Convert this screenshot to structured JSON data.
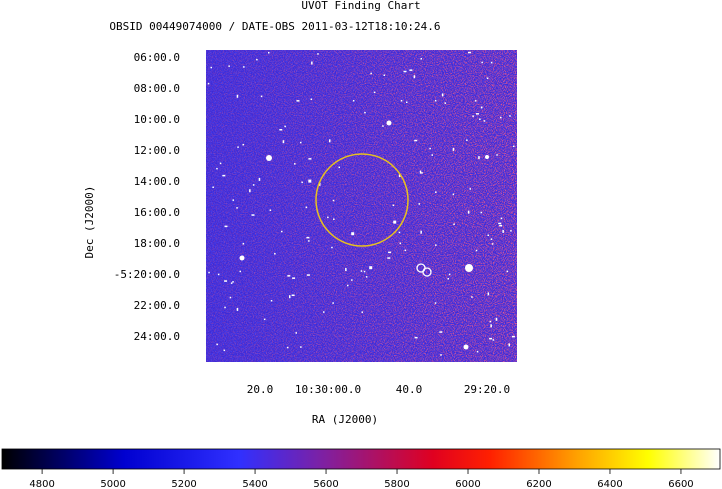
{
  "header": {
    "title": "UVOT Finding Chart",
    "subtitle": "OBSID 00449074000 / DATE-OBS 2011-03-12T18:10:24.6"
  },
  "axes": {
    "y": {
      "label": "Dec (J2000)",
      "ticks": [
        "06:00.0",
        "08:00.0",
        "10:00.0",
        "12:00.0",
        "14:00.0",
        "16:00.0",
        "18:00.0",
        "-5:20:00.0",
        "22:00.0",
        "24:00.0"
      ]
    },
    "x": {
      "label": "RA (J2000)",
      "ticks": [
        "20.0",
        "10:30:00.0",
        "40.0",
        "29:20.0"
      ]
    }
  },
  "colorbar": {
    "range": [
      4687,
      6710
    ],
    "ticks": [
      4800,
      5000,
      5200,
      5400,
      5600,
      5800,
      6000,
      6200,
      6400,
      6600
    ]
  }
}
